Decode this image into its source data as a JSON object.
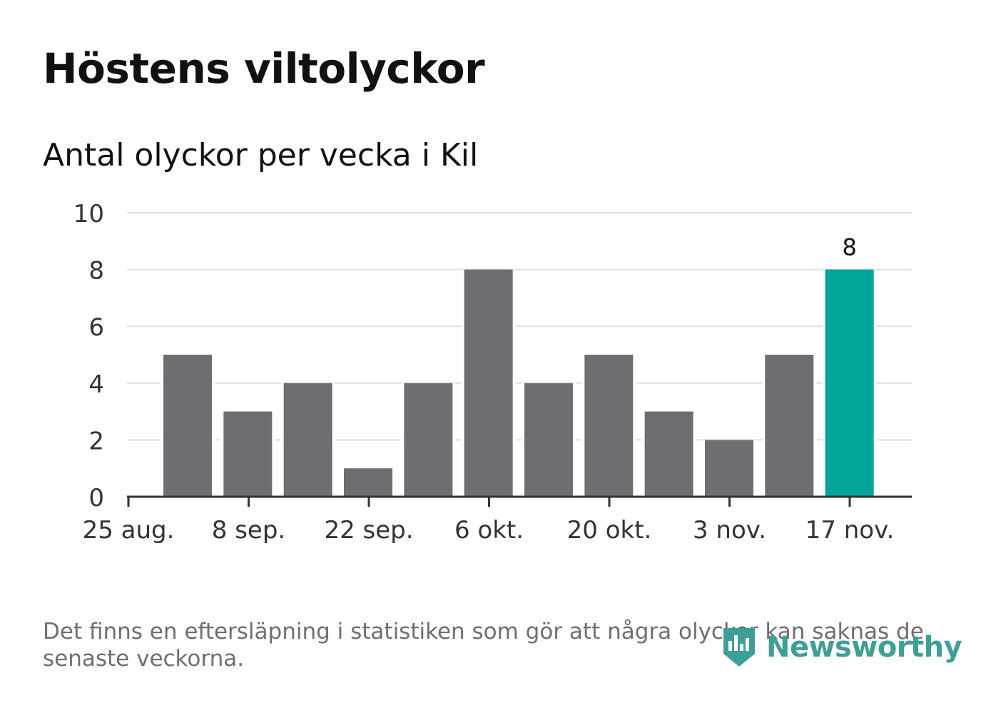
{
  "title": "Höstens viltolyckor",
  "subtitle": "Antal olyckor per vecka i Kil",
  "footnote": "Det finns en eftersläpning i statistiken som gör att några olyckor kan saknas de senaste veckorna.",
  "brand": {
    "name": "Newsworthy",
    "color": "#3f9f96"
  },
  "colors": {
    "bar": "#6e6d72",
    "highlight": "#00a499",
    "grid": "#dddddd",
    "axis": "#333333",
    "text": "#333333"
  },
  "chart_data": {
    "type": "bar",
    "title": "Antal olyckor per vecka i Kil",
    "xlabel": "",
    "ylabel": "",
    "ylim": [
      0,
      10
    ],
    "yticks": [
      "0",
      "2",
      "4",
      "6",
      "8",
      "10"
    ],
    "xticks": [
      "25 aug.",
      "8 sep.",
      "22 sep.",
      "6 okt.",
      "20 okt.",
      "3 nov.",
      "17 nov."
    ],
    "values": [
      5,
      3,
      4,
      1,
      4,
      8,
      4,
      5,
      3,
      2,
      5,
      8
    ],
    "highlight_index": 11,
    "data_labels": [
      {
        "index": 11,
        "text": "8"
      }
    ],
    "grid": true
  }
}
